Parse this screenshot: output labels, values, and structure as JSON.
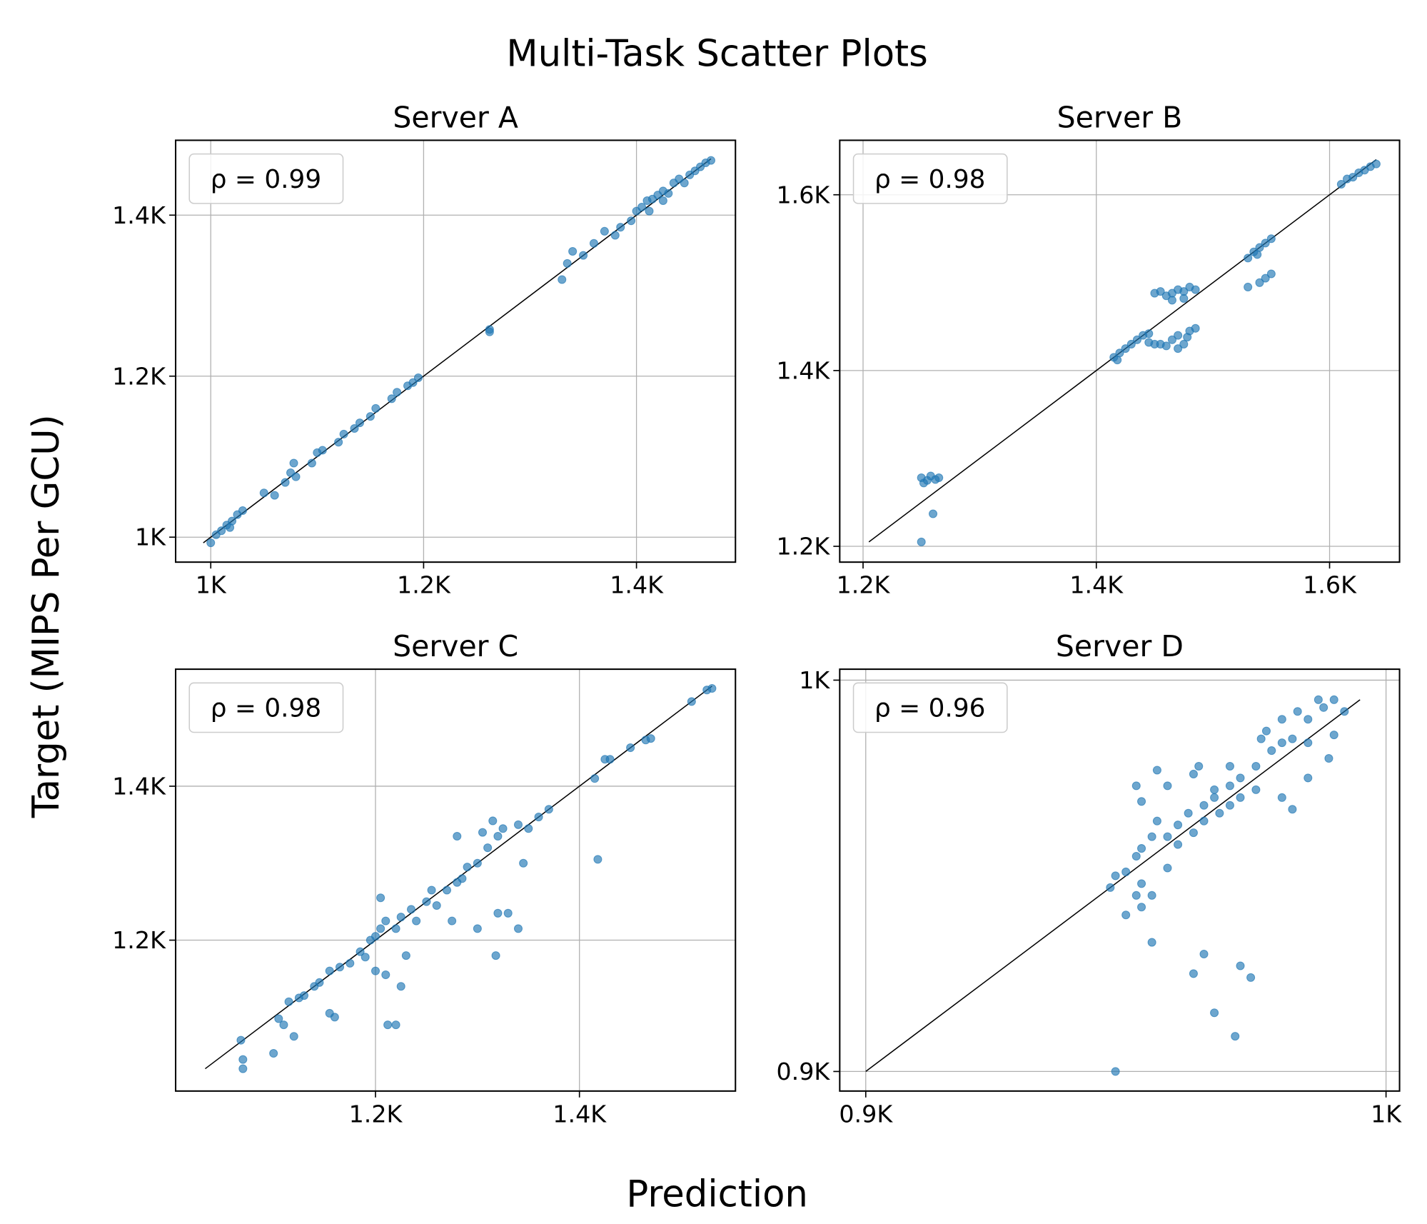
{
  "title": "Multi-Task Scatter Plots",
  "xlabel": "Prediction",
  "ylabel": "Target (MIPS Per GCU)",
  "chart_data": [
    {
      "type": "scatter",
      "title": "Server A",
      "annotation": "ρ = 0.99",
      "color": "#1f77b4",
      "grid": true,
      "xlim": [
        967,
        1493
      ],
      "ylim": [
        969,
        1493
      ],
      "xticks": [
        {
          "value": 1000,
          "label": "1K"
        },
        {
          "value": 1200,
          "label": "1.2K"
        },
        {
          "value": 1400,
          "label": "1.4K"
        }
      ],
      "yticks": [
        {
          "value": 1000,
          "label": "1K"
        },
        {
          "value": 1200,
          "label": "1.2K"
        },
        {
          "value": 1400,
          "label": "1.4K"
        }
      ],
      "x": [
        1000,
        1005,
        1010,
        1015,
        1020,
        1025,
        1030,
        1018,
        1050,
        1060,
        1070,
        1075,
        1080,
        1078,
        1095,
        1100,
        1105,
        1120,
        1125,
        1135,
        1140,
        1150,
        1155,
        1170,
        1175,
        1185,
        1190,
        1195,
        1262,
        1262,
        1330,
        1335,
        1340,
        1350,
        1360,
        1370,
        1380,
        1385,
        1395,
        1400,
        1405,
        1410,
        1415,
        1420,
        1425,
        1430,
        1435,
        1440,
        1445,
        1450,
        1455,
        1460,
        1465,
        1470,
        1412,
        1425
      ],
      "y": [
        993,
        1003,
        1008,
        1015,
        1020,
        1028,
        1033,
        1012,
        1055,
        1052,
        1068,
        1080,
        1075,
        1092,
        1092,
        1105,
        1108,
        1118,
        1128,
        1135,
        1142,
        1150,
        1160,
        1172,
        1180,
        1188,
        1192,
        1198,
        1258,
        1255,
        1320,
        1340,
        1355,
        1350,
        1365,
        1380,
        1375,
        1385,
        1393,
        1405,
        1410,
        1418,
        1420,
        1425,
        1430,
        1427,
        1440,
        1445,
        1440,
        1450,
        1455,
        1460,
        1465,
        1468,
        1405,
        1418
      ]
    },
    {
      "type": "scatter",
      "title": "Server B",
      "annotation": "ρ = 0.98",
      "color": "#1f77b4",
      "grid": true,
      "xlim": [
        1180,
        1660
      ],
      "ylim": [
        1182,
        1662
      ],
      "xticks": [
        {
          "value": 1200,
          "label": "1.2K"
        },
        {
          "value": 1400,
          "label": "1.4K"
        },
        {
          "value": 1600,
          "label": "1.6K"
        }
      ],
      "yticks": [
        {
          "value": 1200,
          "label": "1.2K"
        },
        {
          "value": 1400,
          "label": "1.4K"
        },
        {
          "value": 1600,
          "label": "1.6K"
        }
      ],
      "x": [
        1250,
        1255,
        1258,
        1262,
        1265,
        1252,
        1260,
        1250,
        1415,
        1420,
        1425,
        1430,
        1435,
        1440,
        1445,
        1418,
        1445,
        1450,
        1455,
        1460,
        1450,
        1455,
        1460,
        1465,
        1470,
        1475,
        1480,
        1485,
        1465,
        1475,
        1465,
        1470,
        1475,
        1480,
        1485,
        1470,
        1478,
        1530,
        1535,
        1540,
        1545,
        1550,
        1538,
        1530,
        1540,
        1545,
        1550,
        1610,
        1615,
        1620,
        1625,
        1630,
        1635,
        1640
      ],
      "y": [
        1278,
        1275,
        1280,
        1276,
        1278,
        1272,
        1237,
        1205,
        1415,
        1420,
        1425,
        1430,
        1435,
        1440,
        1442,
        1412,
        1432,
        1430,
        1430,
        1428,
        1488,
        1490,
        1485,
        1488,
        1492,
        1490,
        1495,
        1492,
        1480,
        1482,
        1435,
        1440,
        1430,
        1445,
        1448,
        1425,
        1438,
        1528,
        1535,
        1540,
        1545,
        1550,
        1532,
        1495,
        1500,
        1505,
        1510,
        1612,
        1618,
        1620,
        1625,
        1628,
        1632,
        1635
      ]
    },
    {
      "type": "scatter",
      "title": "Server C",
      "annotation": "ρ = 0.98",
      "color": "#1f77b4",
      "grid": true,
      "xlim": [
        1004,
        1553
      ],
      "ylim": [
        1004,
        1552
      ],
      "xticks": [
        {
          "value": 1200,
          "label": "1.2K"
        },
        {
          "value": 1400,
          "label": "1.4K"
        }
      ],
      "yticks": [
        {
          "value": 1200,
          "label": "1.2K"
        },
        {
          "value": 1400,
          "label": "1.4K"
        }
      ],
      "x": [
        1068,
        1070,
        1070,
        1100,
        1105,
        1110,
        1115,
        1120,
        1125,
        1130,
        1140,
        1145,
        1155,
        1160,
        1155,
        1165,
        1175,
        1185,
        1190,
        1195,
        1200,
        1200,
        1205,
        1205,
        1210,
        1210,
        1212,
        1220,
        1220,
        1225,
        1225,
        1230,
        1235,
        1240,
        1250,
        1255,
        1260,
        1270,
        1275,
        1280,
        1285,
        1290,
        1280,
        1300,
        1300,
        1305,
        1310,
        1315,
        1320,
        1325,
        1318,
        1320,
        1330,
        1340,
        1340,
        1345,
        1350,
        1360,
        1370,
        1415,
        1418,
        1425,
        1430,
        1450,
        1465,
        1470,
        1510,
        1525,
        1530
      ],
      "y": [
        1070,
        1045,
        1033,
        1053,
        1098,
        1090,
        1120,
        1075,
        1125,
        1128,
        1140,
        1145,
        1105,
        1100,
        1160,
        1165,
        1170,
        1185,
        1178,
        1200,
        1205,
        1160,
        1215,
        1255,
        1225,
        1155,
        1090,
        1090,
        1215,
        1230,
        1140,
        1180,
        1240,
        1225,
        1250,
        1265,
        1245,
        1265,
        1225,
        1275,
        1280,
        1295,
        1335,
        1300,
        1215,
        1340,
        1320,
        1355,
        1335,
        1345,
        1180,
        1235,
        1235,
        1215,
        1350,
        1300,
        1345,
        1360,
        1370,
        1410,
        1305,
        1435,
        1435,
        1450,
        1460,
        1462,
        1510,
        1525,
        1527
      ]
    },
    {
      "type": "scatter",
      "title": "Server D",
      "annotation": "ρ = 0.96",
      "color": "#1f77b4",
      "grid": true,
      "xlim": [
        895,
        1002.6
      ],
      "ylim": [
        895,
        1002.8
      ],
      "xticks": [
        {
          "value": 900,
          "label": "0.9K"
        },
        {
          "value": 1000,
          "label": "1K"
        }
      ],
      "yticks": [
        {
          "value": 900,
          "label": "0.9K"
        },
        {
          "value": 1000,
          "label": "1K"
        }
      ],
      "x": [
        947,
        950,
        948,
        950,
        952,
        953,
        955,
        952,
        953,
        955,
        956,
        958,
        958,
        960,
        960,
        962,
        963,
        965,
        965,
        967,
        967,
        968,
        970,
        970,
        972,
        972,
        975,
        975,
        976,
        977,
        978,
        980,
        980,
        982,
        983,
        985,
        985,
        988,
        987,
        990,
        990,
        992,
        985,
        980,
        982,
        953,
        952,
        958,
        963,
        964,
        956,
        955,
        965,
        963,
        972,
        974,
        967,
        971,
        948,
        953,
        970,
        989
      ],
      "y": [
        947,
        940,
        950,
        951,
        945,
        948,
        945,
        955,
        957,
        960,
        964,
        952,
        960,
        963,
        958,
        966,
        961,
        968,
        964,
        970,
        972,
        966,
        973,
        978,
        975,
        970,
        972,
        978,
        985,
        987,
        982,
        984,
        990,
        985,
        992,
        990,
        984,
        993,
        995,
        995,
        986,
        992,
        975,
        970,
        967,
        969,
        973,
        973,
        976,
        978,
        977,
        933,
        930,
        925,
        927,
        924,
        915,
        909,
        900,
        942,
        968,
        980
      ]
    }
  ]
}
